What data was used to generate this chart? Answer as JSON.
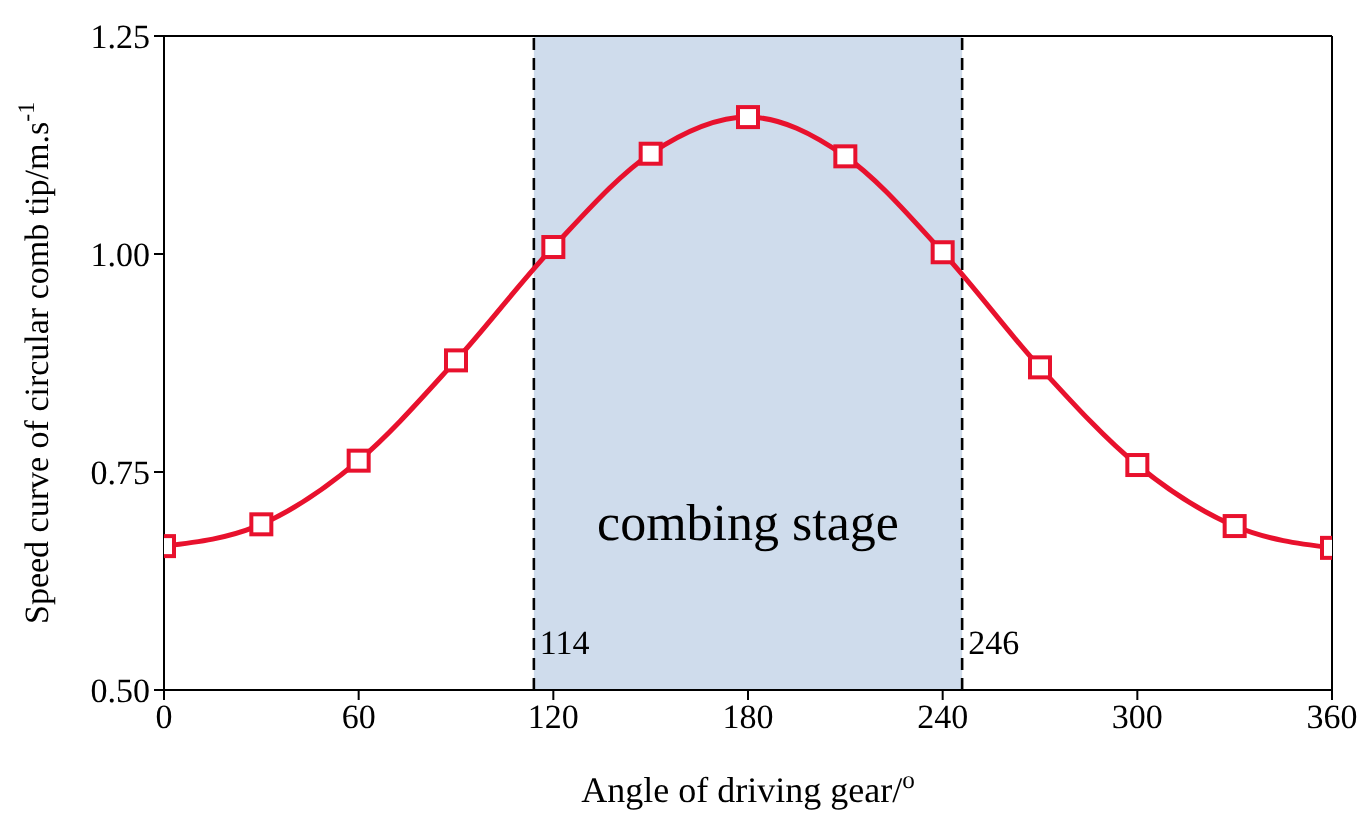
{
  "chart_data": {
    "type": "line",
    "xlabel": "Angle of driving gear/$^{o}$",
    "ylabel": "Speed curve of circular comb tip/m.s$^{-1}$",
    "x": [
      0,
      30,
      60,
      90,
      120,
      150,
      180,
      210,
      240,
      270,
      300,
      330,
      360
    ],
    "series": [
      {
        "color": "#e8112d",
        "values": [
          0.665,
          0.69,
          0.763,
          0.878,
          1.008,
          1.115,
          1.157,
          1.112,
          1.002,
          0.87,
          0.758,
          0.688,
          0.663
        ]
      }
    ],
    "xlim": [
      0,
      360
    ],
    "xticks": [
      0,
      60,
      120,
      180,
      240,
      300,
      360
    ],
    "ylim": [
      0.5,
      1.25
    ],
    "yticks": [
      {
        "value": 0.5,
        "label": "0.50"
      },
      {
        "value": 0.75,
        "label": "0.75"
      },
      {
        "value": 1.0,
        "label": "1.00"
      },
      {
        "value": 1.25,
        "label": "1.25"
      }
    ],
    "marker": "square",
    "line_style": "solid",
    "bands": [
      {
        "axis": "x",
        "from": 114,
        "to": 246,
        "label": "combing stage",
        "color": "#cfdcec"
      }
    ],
    "ref_lines": [
      {
        "axis": "x",
        "value": 114,
        "label": "114",
        "color": "#000000",
        "line_style": "dashed"
      },
      {
        "axis": "x",
        "value": 246,
        "label": "246",
        "color": "#000000",
        "line_style": "dashed"
      }
    ]
  }
}
